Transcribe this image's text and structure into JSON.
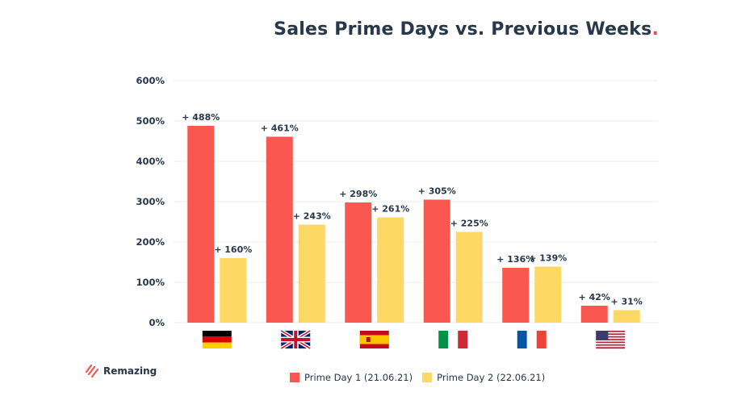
{
  "header": {
    "title": "Sales Prime Days vs. Previous Weeks",
    "title_dot": "."
  },
  "brand": {
    "name": "Remazing",
    "icon": "remazing-stripes-icon"
  },
  "colors": {
    "series1": "#f9574f",
    "series2": "#fdd865",
    "text": "#27384a",
    "grid": "#ececec",
    "accent": "#e8504a"
  },
  "chart_data": {
    "type": "bar",
    "title": "Sales Prime Days vs. Previous Weeks",
    "xlabel": "",
    "ylabel": "",
    "ylim": [
      0,
      600
    ],
    "yticks": [
      0,
      100,
      200,
      300,
      400,
      500,
      600
    ],
    "ytick_labels": [
      "0%",
      "100%",
      "200%",
      "300%",
      "400%",
      "500%",
      "600%"
    ],
    "grid": true,
    "categories": [
      "Germany",
      "United Kingdom",
      "Spain",
      "Italy",
      "France",
      "United States"
    ],
    "category_icons": [
      "flag-de-icon",
      "flag-uk-icon",
      "flag-es-icon",
      "flag-it-icon",
      "flag-fr-icon",
      "flag-us-icon"
    ],
    "series": [
      {
        "name": "Prime Day 1 (21.06.21)",
        "color": "#f9574f",
        "values": [
          488,
          461,
          298,
          305,
          136,
          42
        ],
        "labels": [
          "+ 488%",
          "+ 461%",
          "+ 298%",
          "+ 305%",
          "+ 136%",
          "+ 42%"
        ]
      },
      {
        "name": "Prime Day 2 (22.06.21)",
        "color": "#fdd865",
        "values": [
          160,
          243,
          261,
          225,
          139,
          31
        ],
        "labels": [
          "+ 160%",
          "+ 243%",
          "+ 261%",
          "+ 225%",
          "+ 139%",
          "+ 31%"
        ]
      }
    ],
    "legend_position": "bottom-center"
  }
}
